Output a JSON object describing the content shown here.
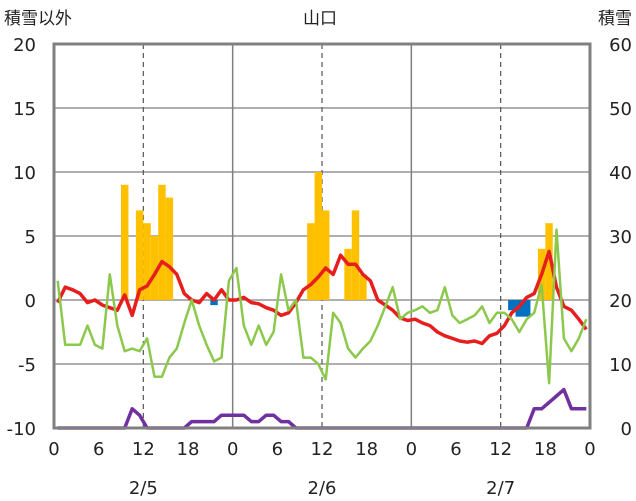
{
  "chart_data": {
    "type": "bar+line",
    "title": "山口",
    "left_axis_label": "積雪以外",
    "right_axis_label": "積雪",
    "left_ylim": [
      -10,
      20
    ],
    "left_ticks": [
      "20",
      "15",
      "10",
      "5",
      "0",
      "-5",
      "-10"
    ],
    "right_ylim": [
      0,
      60
    ],
    "right_ticks": [
      "60",
      "50",
      "40",
      "30",
      "20",
      "10",
      "0"
    ],
    "x_tick_labels": [
      "0",
      "6",
      "12",
      "18",
      "0",
      "6",
      "12",
      "18",
      "0",
      "6",
      "12",
      "18",
      "0"
    ],
    "date_labels": [
      "2/5",
      "2/6",
      "2/7"
    ],
    "hours": [
      0,
      1,
      2,
      3,
      4,
      5,
      6,
      7,
      8,
      9,
      10,
      11,
      12,
      13,
      14,
      15,
      16,
      17,
      18,
      19,
      20,
      21,
      22,
      23,
      24,
      25,
      26,
      27,
      28,
      29,
      30,
      31,
      32,
      33,
      34,
      35,
      36,
      37,
      38,
      39,
      40,
      41,
      42,
      43,
      44,
      45,
      46,
      47,
      48,
      49,
      50,
      51,
      52,
      53,
      54,
      55,
      56,
      57,
      58,
      59,
      60,
      61,
      62,
      63,
      64,
      65,
      66,
      67,
      68,
      69,
      70,
      71
    ],
    "bars_orange": [
      0,
      0,
      0,
      0,
      0,
      0,
      0,
      0,
      0,
      9,
      0,
      7,
      6,
      5,
      9,
      8,
      0,
      0,
      0,
      0,
      0,
      0,
      0,
      0,
      0,
      0,
      0,
      0,
      0,
      0,
      0,
      0,
      0,
      0,
      6,
      10,
      7,
      0,
      0,
      4,
      7,
      2,
      0,
      0,
      0,
      0,
      0,
      0,
      0,
      0,
      0,
      0,
      0,
      0,
      0,
      0,
      0,
      0,
      0,
      0,
      0,
      0,
      0,
      0,
      0,
      4,
      6,
      0,
      0,
      0,
      0,
      0
    ],
    "bars_blue": [
      0,
      0,
      0,
      0,
      0,
      0,
      0,
      0,
      0,
      0,
      0,
      0,
      0,
      0,
      0,
      0,
      0,
      0,
      0,
      0,
      0,
      -0.4,
      0,
      0,
      0,
      0,
      0,
      0,
      0,
      0,
      0,
      0,
      0,
      0,
      0,
      0,
      0,
      0,
      0,
      0,
      0,
      0,
      0,
      0,
      0,
      0,
      0,
      0,
      0,
      0,
      0,
      0,
      0,
      0,
      0,
      0,
      0,
      0,
      0,
      0,
      0,
      -0.8,
      -1.3,
      -1.3,
      0,
      0,
      0,
      0,
      0,
      0,
      0,
      0
    ],
    "series": [
      {
        "color": "#e61e1e",
        "values": [
          -0.2,
          1,
          0.8,
          0.5,
          -0.2,
          0,
          -0.4,
          -0.6,
          -0.8,
          0.4,
          -1.2,
          0.8,
          1.1,
          2,
          3,
          2.6,
          2,
          0.5,
          0,
          -0.2,
          0.5,
          0,
          0.8,
          0,
          0,
          0.2,
          -0.2,
          -0.3,
          -0.6,
          -0.8,
          -1.2,
          -1,
          -0.2,
          0.8,
          1.2,
          1.8,
          2.5,
          2,
          3.5,
          2.8,
          2.8,
          2,
          1.5,
          0,
          -0.4,
          -0.8,
          -1.4,
          -1.6,
          -1.5,
          -1.8,
          -2,
          -2.5,
          -2.8,
          -3,
          -3.2,
          -3.3,
          -3.2,
          -3.4,
          -2.8,
          -2.6,
          -2,
          -1,
          -0.5,
          0.2,
          0.5,
          2,
          3.8,
          1,
          -0.5,
          -0.8,
          -1.5,
          -2.3
        ]
      },
      {
        "color": "#8cc84b",
        "values": [
          1.5,
          -3.5,
          -3.5,
          -3.5,
          -2,
          -3.5,
          -3.8,
          2,
          -2,
          -4,
          -3.8,
          -4,
          -3,
          -6,
          -6,
          -4.5,
          -3.8,
          -1.8,
          0,
          -2,
          -3.5,
          -4.8,
          -4.5,
          1.5,
          2.5,
          -2,
          -3.5,
          -2,
          -3.5,
          -2.5,
          2,
          -0.8,
          0,
          -4.5,
          -4.5,
          -5,
          -6.2,
          -1,
          -1.8,
          -3.8,
          -4.5,
          -3.8,
          -3.2,
          -2,
          -0.5,
          1,
          -1.5,
          -1,
          -0.8,
          -0.5,
          -1,
          -0.8,
          1,
          -1.2,
          -1.8,
          -1.5,
          -1.2,
          -0.5,
          -1.8,
          -1,
          -1,
          -1.5,
          -2.5,
          -1.5,
          -1,
          1.2,
          -6.5,
          5.5,
          -3,
          -4,
          -3,
          -1.5
        ]
      },
      {
        "color": "#7030a0",
        "values": [
          -10,
          -10,
          -10,
          -10,
          -10,
          -10,
          -10,
          -10,
          -10,
          -10,
          -8.5,
          -9,
          -10,
          -10,
          -10,
          -10,
          -10,
          -10,
          -9.5,
          -9.5,
          -9.5,
          -9.5,
          -9,
          -9,
          -9,
          -9,
          -9.5,
          -9.5,
          -9,
          -9,
          -9.5,
          -9.5,
          -10,
          -10,
          -10,
          -10,
          -10,
          -10,
          -10,
          -10,
          -10,
          -10,
          -10,
          -10,
          -10,
          -10,
          -10,
          -10,
          -10,
          -10,
          -10,
          -10,
          -10,
          -10,
          -10,
          -10,
          -10,
          -10,
          -10,
          -10,
          -10,
          -10,
          -10,
          -10,
          -8.5,
          -8.5,
          -8,
          -7.5,
          -7,
          -8.5,
          -8.5,
          -8.5
        ]
      }
    ]
  }
}
